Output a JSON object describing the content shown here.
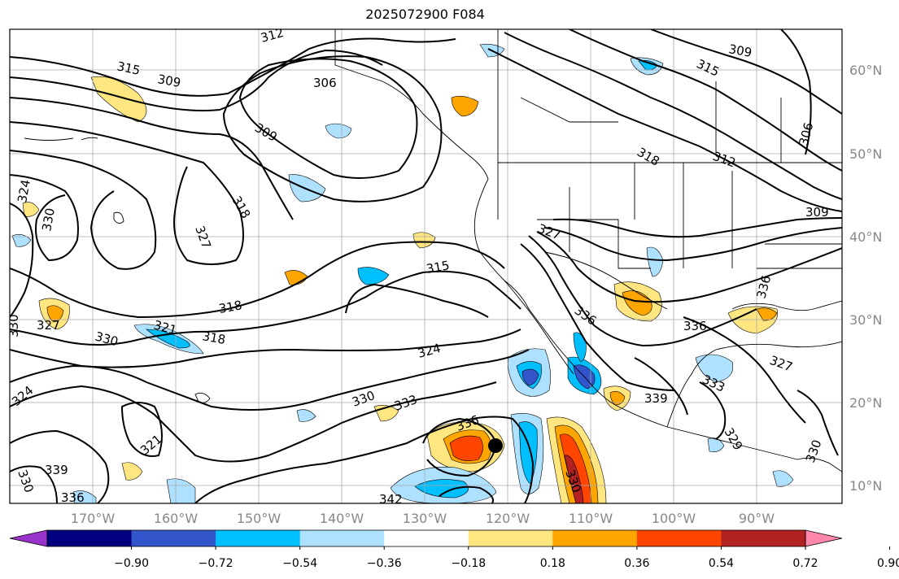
{
  "title": "2025072900 F084",
  "axes": {
    "lon_ticks": [
      "170°W",
      "160°W",
      "150°W",
      "140°W",
      "130°W",
      "120°W",
      "110°W",
      "100°W",
      "90°W"
    ],
    "lat_ticks": [
      "60°N",
      "50°N",
      "40°N",
      "30°N",
      "20°N",
      "10°N"
    ]
  },
  "colorbar": {
    "colors": [
      "#9933cc",
      "#000080",
      "#3355cc",
      "#00bfff",
      "#aee0ff",
      "#ffffff",
      "#ffe680",
      "#ffa500",
      "#ff4500",
      "#b22222",
      "#ff88aa"
    ],
    "tick_labels": [
      "−0.90",
      "−0.72",
      "−0.54",
      "−0.36",
      "−0.18",
      "0.18",
      "0.36",
      "0.54",
      "0.72",
      "0.90"
    ]
  },
  "contour_labels": [
    {
      "text": "312"
    },
    {
      "text": "315"
    },
    {
      "text": "309"
    },
    {
      "text": "306"
    },
    {
      "text": "309"
    },
    {
      "text": "318"
    },
    {
      "text": "327"
    },
    {
      "text": "324"
    },
    {
      "text": "330"
    },
    {
      "text": "327"
    },
    {
      "text": "330"
    },
    {
      "text": "321"
    },
    {
      "text": "318"
    },
    {
      "text": "318"
    },
    {
      "text": "330"
    },
    {
      "text": "324"
    },
    {
      "text": "321"
    },
    {
      "text": "339"
    },
    {
      "text": "336"
    },
    {
      "text": "330"
    },
    {
      "text": "315"
    },
    {
      "text": "324"
    },
    {
      "text": "330"
    },
    {
      "text": "333"
    },
    {
      "text": "336"
    },
    {
      "text": "342"
    },
    {
      "text": "309"
    },
    {
      "text": "315"
    },
    {
      "text": "318"
    },
    {
      "text": "312"
    },
    {
      "text": "306"
    },
    {
      "text": "309"
    },
    {
      "text": "327"
    },
    {
      "text": "336"
    },
    {
      "text": "336"
    },
    {
      "text": "327"
    },
    {
      "text": "333"
    },
    {
      "text": "339"
    },
    {
      "text": "336"
    },
    {
      "text": "330"
    },
    {
      "text": "329"
    },
    {
      "text": "330"
    }
  ],
  "marker": {
    "name": "storm-center"
  }
}
